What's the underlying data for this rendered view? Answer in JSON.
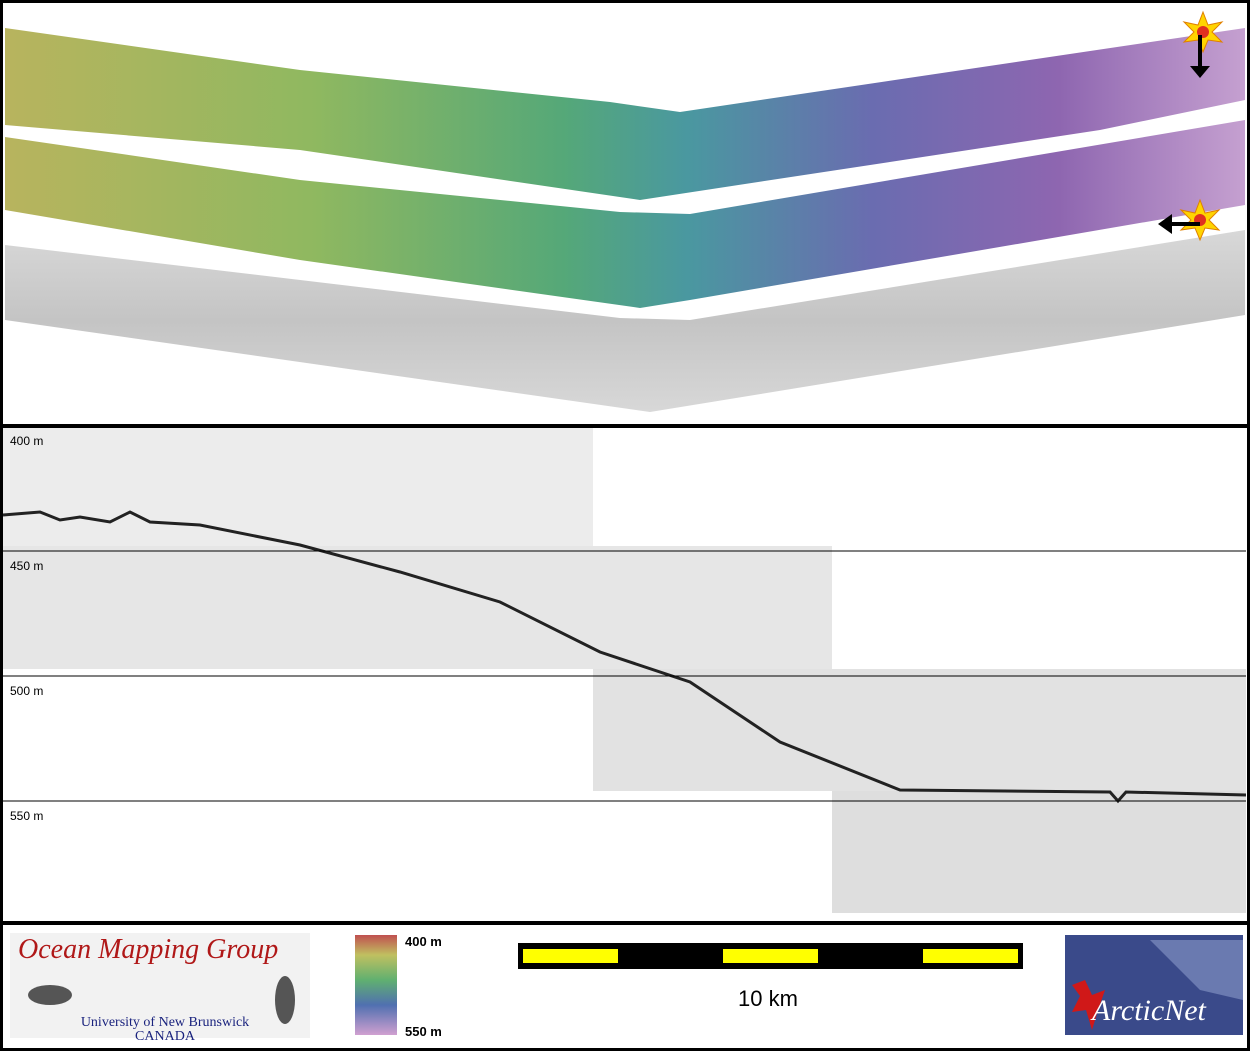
{
  "profile_labels": [
    "400 m",
    "450 m",
    "500 m",
    "550 m"
  ],
  "logo_left": {
    "title": "Ocean Mapping Group",
    "line1": "University of New Brunswick",
    "line2": "CANADA"
  },
  "colorbar": {
    "top": "400 m",
    "bottom": "550 m"
  },
  "scale_bar": "10 km",
  "logo_right": "ArcticNet"
}
